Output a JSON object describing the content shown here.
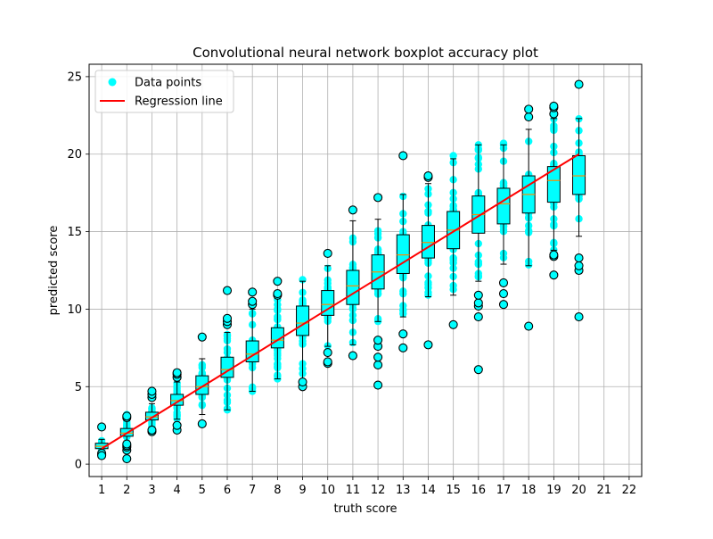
{
  "chart_data": {
    "type": "box",
    "title": "Convolutional neural network boxplot accuracy plot",
    "xlabel": "truth score",
    "ylabel": "predicted score",
    "xlim": [
      0.5,
      22.5
    ],
    "ylim": [
      -0.8,
      25.8
    ],
    "xticks": [
      1,
      2,
      3,
      4,
      5,
      6,
      7,
      8,
      9,
      10,
      11,
      12,
      13,
      14,
      15,
      16,
      17,
      18,
      19,
      20,
      21,
      22
    ],
    "yticks": [
      0,
      5,
      10,
      15,
      20,
      25
    ],
    "grid": true,
    "legend": {
      "placement": "upper-left",
      "entries": [
        {
          "label": "Data points",
          "kind": "scatter",
          "color": "#00ffff"
        },
        {
          "label": "Regression line",
          "kind": "line",
          "color": "#ff0000"
        }
      ]
    },
    "colors": {
      "box_fill": "#00ffff",
      "points": "#00ffff",
      "median": "#ff8c00",
      "regression": "#ff0000",
      "outline": "#000000",
      "grid": "#b0b0b0"
    },
    "regression_line": {
      "x": [
        1,
        20
      ],
      "y": [
        1.0,
        20.0
      ]
    },
    "boxes": [
      {
        "x": 1,
        "q1": 1.0,
        "median": 1.15,
        "q3": 1.35,
        "whisker_low": 0.85,
        "whisker_high": 1.6,
        "outliers": [
          0.6,
          0.7,
          0.55,
          2.4
        ],
        "points_min": 0.55,
        "points_max": 2.4
      },
      {
        "x": 2,
        "q1": 1.8,
        "median": 2.0,
        "q3": 2.3,
        "whisker_low": 1.5,
        "whisker_high": 2.8,
        "outliers": [
          0.35,
          0.9,
          1.1,
          1.2,
          1.3,
          3.0,
          3.1
        ],
        "points_min": 0.35,
        "points_max": 3.2
      },
      {
        "x": 3,
        "q1": 2.85,
        "median": 3.05,
        "q3": 3.35,
        "whisker_low": 2.4,
        "whisker_high": 3.9,
        "outliers": [
          2.1,
          2.2,
          4.3,
          4.5,
          4.7
        ],
        "points_min": 2.1,
        "points_max": 4.7
      },
      {
        "x": 4,
        "q1": 3.8,
        "median": 4.1,
        "q3": 4.5,
        "whisker_low": 2.9,
        "whisker_high": 5.3,
        "outliers": [
          2.2,
          2.5,
          5.6,
          5.8,
          5.9
        ],
        "points_min": 2.2,
        "points_max": 5.9
      },
      {
        "x": 5,
        "q1": 4.5,
        "median": 5.0,
        "q3": 5.7,
        "whisker_low": 3.2,
        "whisker_high": 6.8,
        "outliers": [
          2.6,
          8.2
        ],
        "points_min": 2.6,
        "points_max": 8.2
      },
      {
        "x": 6,
        "q1": 5.6,
        "median": 6.1,
        "q3": 6.9,
        "whisker_low": 3.5,
        "whisker_high": 8.5,
        "outliers": [
          9.0,
          9.2,
          9.4,
          11.2
        ],
        "points_min": 3.5,
        "points_max": 11.2
      },
      {
        "x": 7,
        "q1": 6.6,
        "median": 7.1,
        "q3": 7.95,
        "whisker_low": 4.7,
        "whisker_high": 10.0,
        "outliers": [
          10.3,
          10.5,
          11.1
        ],
        "points_min": 4.7,
        "points_max": 11.1
      },
      {
        "x": 8,
        "q1": 7.5,
        "median": 8.0,
        "q3": 8.8,
        "whisker_low": 5.5,
        "whisker_high": 10.7,
        "outliers": [
          10.9,
          11.0,
          11.8
        ],
        "points_min": 5.5,
        "points_max": 11.8
      },
      {
        "x": 9,
        "q1": 8.3,
        "median": 9.1,
        "q3": 10.2,
        "whisker_low": 5.4,
        "whisker_high": 11.8,
        "outliers": [
          5.0,
          5.3
        ],
        "points_min": 5.0,
        "points_max": 11.9
      },
      {
        "x": 10,
        "q1": 9.6,
        "median": 10.3,
        "q3": 11.2,
        "whisker_low": 7.6,
        "whisker_high": 12.8,
        "outliers": [
          6.5,
          6.6,
          7.2,
          13.6
        ],
        "points_min": 6.5,
        "points_max": 13.6
      },
      {
        "x": 11,
        "q1": 10.3,
        "median": 11.5,
        "q3": 12.5,
        "whisker_low": 7.7,
        "whisker_high": 15.7,
        "outliers": [
          7.0,
          16.4
        ],
        "points_min": 7.0,
        "points_max": 16.4
      },
      {
        "x": 12,
        "q1": 11.3,
        "median": 12.4,
        "q3": 13.5,
        "whisker_low": 9.2,
        "whisker_high": 15.8,
        "outliers": [
          5.1,
          6.4,
          6.9,
          7.6,
          8.0,
          17.2
        ],
        "points_min": 5.1,
        "points_max": 17.2
      },
      {
        "x": 13,
        "q1": 12.3,
        "median": 13.5,
        "q3": 14.8,
        "whisker_low": 9.5,
        "whisker_high": 17.4,
        "outliers": [
          7.5,
          8.4,
          19.9
        ],
        "points_min": 7.5,
        "points_max": 19.9
      },
      {
        "x": 14,
        "q1": 13.3,
        "median": 14.3,
        "q3": 15.4,
        "whisker_low": 10.8,
        "whisker_high": 18.1,
        "outliers": [
          7.7,
          18.5,
          18.6
        ],
        "points_min": 7.7,
        "points_max": 18.6
      },
      {
        "x": 15,
        "q1": 13.9,
        "median": 15.1,
        "q3": 16.3,
        "whisker_low": 10.9,
        "whisker_high": 19.7,
        "outliers": [
          9.0
        ],
        "points_min": 9.0,
        "points_max": 19.9
      },
      {
        "x": 16,
        "q1": 14.9,
        "median": 16.1,
        "q3": 17.3,
        "whisker_low": 11.8,
        "whisker_high": 20.6,
        "outliers": [
          6.1,
          9.5,
          10.2,
          10.4,
          10.9
        ],
        "points_min": 6.1,
        "points_max": 20.6
      },
      {
        "x": 17,
        "q1": 15.5,
        "median": 16.8,
        "q3": 17.8,
        "whisker_low": 12.9,
        "whisker_high": 20.6,
        "outliers": [
          10.3,
          11.0,
          11.7
        ],
        "points_min": 10.3,
        "points_max": 20.7
      },
      {
        "x": 18,
        "q1": 16.2,
        "median": 17.4,
        "q3": 18.6,
        "whisker_low": 12.8,
        "whisker_high": 21.6,
        "outliers": [
          8.9,
          22.4,
          22.9
        ],
        "points_min": 8.9,
        "points_max": 22.9
      },
      {
        "x": 19,
        "q1": 16.9,
        "median": 18.3,
        "q3": 19.2,
        "whisker_low": 13.8,
        "whisker_high": 22.3,
        "outliers": [
          12.2,
          13.4,
          13.5,
          22.6,
          23.0,
          23.1
        ],
        "points_min": 12.2,
        "points_max": 23.1
      },
      {
        "x": 20,
        "q1": 17.4,
        "median": 18.6,
        "q3": 19.9,
        "whisker_low": 14.7,
        "whisker_high": 22.3,
        "outliers": [
          9.5,
          12.5,
          12.8,
          13.3,
          24.5
        ],
        "points_min": 9.5,
        "points_max": 24.5
      }
    ]
  }
}
